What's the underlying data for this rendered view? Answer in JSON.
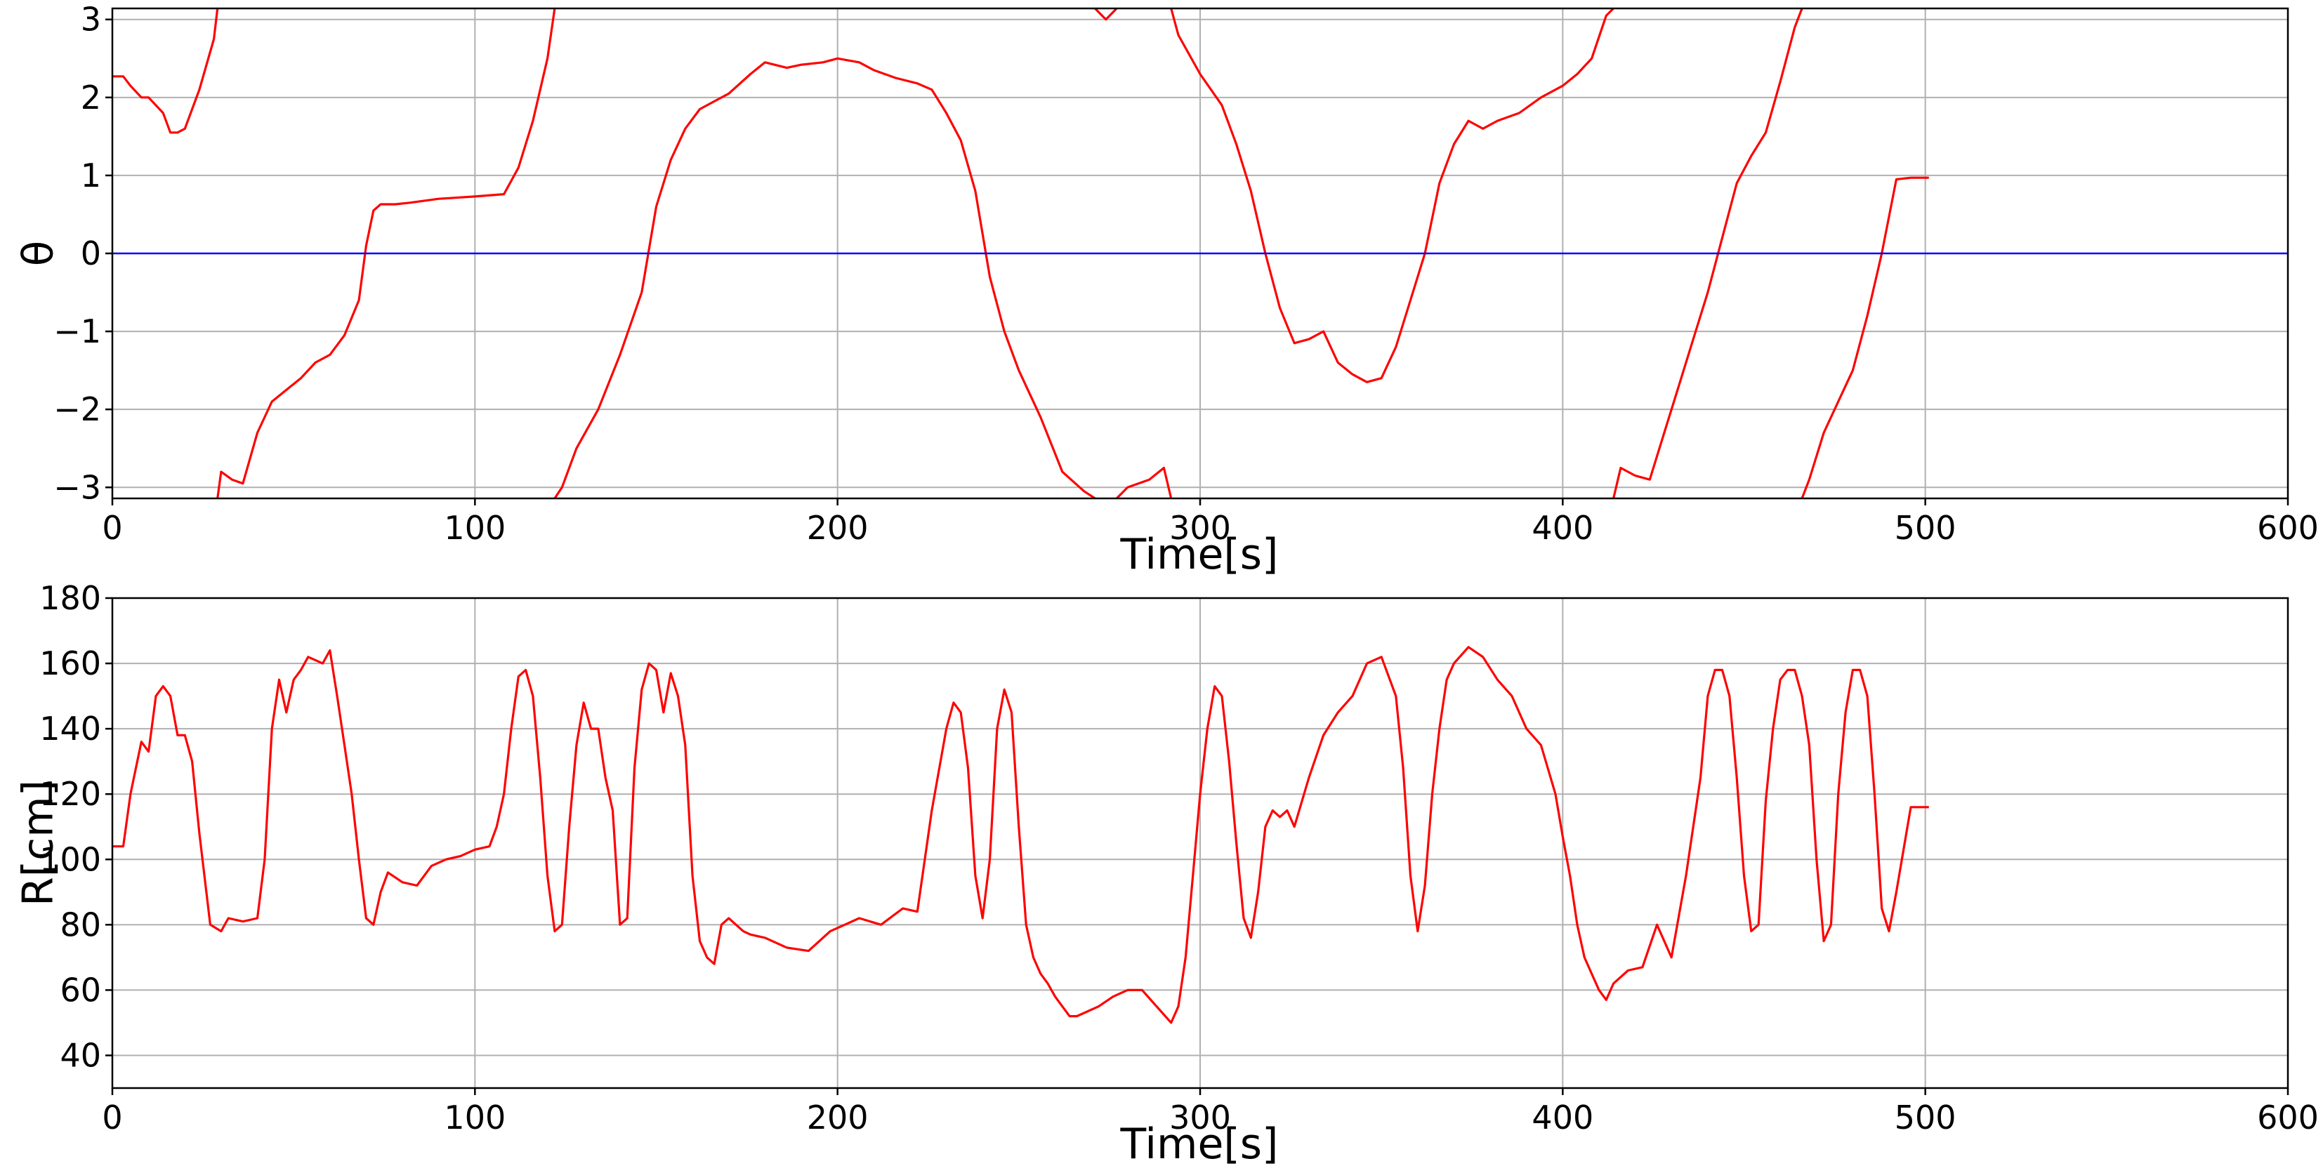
{
  "chart_data": [
    {
      "type": "line",
      "xlabel": "Time[s]",
      "ylabel": "θ",
      "xlim": [
        0,
        600
      ],
      "ylim": [
        -3.14159,
        3.14159
      ],
      "xticks": [
        0,
        100,
        200,
        300,
        400,
        500,
        600
      ],
      "yticks": [
        -3,
        -2,
        -1,
        0,
        1,
        2,
        3
      ],
      "ytick_labels": [
        "−3",
        "−2",
        "−1",
        "0",
        "1",
        "2",
        "3"
      ],
      "grid": true,
      "series": [
        {
          "color": "#ff0000",
          "wrap": true,
          "x": [
            0,
            3,
            5,
            8,
            10,
            14,
            16,
            18,
            20,
            24,
            28,
            30,
            33,
            36,
            40,
            44,
            48,
            52,
            56,
            60,
            64,
            68,
            70,
            72,
            74,
            78,
            82,
            90,
            100,
            108,
            112,
            116,
            120,
            124,
            128,
            134,
            140,
            146,
            150,
            154,
            158,
            162,
            166,
            170,
            176,
            180,
            186,
            190,
            196,
            200,
            206,
            210,
            216,
            222,
            226,
            230,
            234,
            238,
            242,
            246,
            250,
            256,
            262,
            268,
            274,
            280,
            286,
            290,
            294,
            300,
            306,
            310,
            314,
            318,
            322,
            326,
            330,
            334,
            338,
            342,
            346,
            350,
            354,
            358,
            362,
            366,
            370,
            374,
            378,
            382,
            388,
            394,
            400,
            404,
            408,
            412,
            416,
            420,
            424,
            428,
            432,
            436,
            440,
            444,
            448,
            452,
            456,
            460,
            464,
            468,
            472,
            476,
            480,
            484,
            488,
            492,
            496,
            501
          ],
          "y": [
            2.27,
            2.27,
            2.15,
            2.0,
            2.0,
            1.8,
            1.55,
            1.55,
            1.6,
            2.1,
            2.75,
            -2.8,
            -2.9,
            -2.95,
            -2.3,
            -1.9,
            -1.75,
            -1.6,
            -1.4,
            -1.3,
            -1.05,
            -0.6,
            0.1,
            0.55,
            0.63,
            0.63,
            0.65,
            0.7,
            0.73,
            0.76,
            1.1,
            1.7,
            2.5,
            -3.0,
            -2.5,
            -2.0,
            -1.3,
            -0.5,
            0.6,
            1.2,
            1.6,
            1.85,
            1.95,
            2.05,
            2.3,
            2.45,
            2.38,
            2.42,
            2.45,
            2.5,
            2.45,
            2.35,
            2.25,
            2.18,
            2.1,
            1.8,
            1.45,
            0.8,
            -0.3,
            -1.0,
            -1.5,
            -2.1,
            -2.8,
            -3.05,
            3.0,
            -3.0,
            -2.9,
            -2.75,
            2.8,
            2.3,
            1.9,
            1.4,
            0.8,
            0.0,
            -0.7,
            -1.15,
            -1.1,
            -1.0,
            -1.4,
            -1.55,
            -1.65,
            -1.6,
            -1.2,
            -0.6,
            0.0,
            0.9,
            1.4,
            1.7,
            1.6,
            1.7,
            1.8,
            2.0,
            2.15,
            2.3,
            2.5,
            3.05,
            -2.75,
            -2.85,
            -2.9,
            -2.3,
            -1.7,
            -1.1,
            -0.5,
            0.2,
            0.9,
            1.25,
            1.55,
            2.2,
            2.9,
            -2.9,
            -2.3,
            -1.9,
            -1.5,
            -0.8,
            0.0,
            0.95,
            0.97,
            0.97
          ]
        },
        {
          "color": "#0000ff",
          "x": [
            0,
            600
          ],
          "y": [
            0,
            0
          ]
        }
      ]
    },
    {
      "type": "line",
      "xlabel": "Time[s]",
      "ylabel": "R[cm]",
      "xlim": [
        0,
        600
      ],
      "ylim": [
        30,
        180
      ],
      "xticks": [
        0,
        100,
        200,
        300,
        400,
        500,
        600
      ],
      "yticks": [
        40,
        60,
        80,
        100,
        120,
        140,
        160,
        180
      ],
      "ytick_labels": [
        "40",
        "60",
        "80",
        "100",
        "120",
        "140",
        "160",
        "180"
      ],
      "grid": true,
      "series": [
        {
          "color": "#ff0000",
          "x": [
            0,
            3,
            5,
            8,
            10,
            12,
            14,
            16,
            18,
            20,
            22,
            24,
            27,
            30,
            32,
            36,
            40,
            42,
            44,
            46,
            48,
            50,
            52,
            54,
            58,
            60,
            62,
            64,
            66,
            68,
            70,
            72,
            74,
            76,
            80,
            84,
            88,
            92,
            96,
            100,
            104,
            106,
            108,
            110,
            112,
            114,
            116,
            118,
            120,
            122,
            124,
            126,
            128,
            130,
            132,
            134,
            136,
            138,
            140,
            142,
            144,
            146,
            148,
            150,
            152,
            154,
            156,
            158,
            160,
            162,
            164,
            166,
            168,
            170,
            172,
            174,
            176,
            180,
            186,
            192,
            198,
            202,
            206,
            212,
            218,
            222,
            226,
            230,
            232,
            234,
            236,
            238,
            240,
            242,
            244,
            246,
            248,
            250,
            252,
            254,
            256,
            258,
            260,
            262,
            264,
            266,
            268,
            272,
            276,
            280,
            284,
            288,
            292,
            294,
            296,
            298,
            300,
            302,
            304,
            306,
            308,
            310,
            312,
            314,
            316,
            318,
            320,
            322,
            324,
            326,
            330,
            334,
            338,
            342,
            346,
            350,
            354,
            356,
            358,
            360,
            362,
            364,
            366,
            368,
            370,
            374,
            378,
            382,
            386,
            390,
            394,
            398,
            400,
            402,
            404,
            406,
            408,
            410,
            412,
            414,
            418,
            422,
            426,
            430,
            434,
            438,
            440,
            442,
            444,
            446,
            448,
            450,
            452,
            454,
            456,
            458,
            460,
            462,
            464,
            466,
            468,
            470,
            472,
            474,
            476,
            478,
            480,
            482,
            484,
            486,
            488,
            490,
            492,
            496,
            501
          ],
          "y": [
            104,
            104,
            120,
            136,
            133,
            150,
            153,
            150,
            138,
            138,
            130,
            108,
            80,
            78,
            82,
            81,
            82,
            100,
            140,
            155,
            145,
            155,
            158,
            162,
            160,
            164,
            150,
            135,
            120,
            100,
            82,
            80,
            90,
            96,
            93,
            92,
            98,
            100,
            101,
            103,
            104,
            110,
            120,
            140,
            156,
            158,
            150,
            125,
            95,
            78,
            80,
            110,
            135,
            148,
            140,
            140,
            125,
            115,
            80,
            82,
            128,
            152,
            160,
            158,
            145,
            157,
            150,
            135,
            95,
            75,
            70,
            68,
            80,
            82,
            80,
            78,
            77,
            76,
            73,
            72,
            78,
            80,
            82,
            80,
            85,
            84,
            115,
            140,
            148,
            145,
            128,
            95,
            82,
            100,
            140,
            152,
            145,
            110,
            80,
            70,
            65,
            62,
            58,
            55,
            52,
            52,
            53,
            55,
            58,
            60,
            60,
            55,
            50,
            55,
            70,
            95,
            120,
            140,
            153,
            150,
            130,
            105,
            82,
            76,
            90,
            110,
            115,
            113,
            115,
            110,
            125,
            138,
            145,
            150,
            160,
            162,
            150,
            128,
            95,
            78,
            92,
            120,
            140,
            155,
            160,
            165,
            162,
            155,
            150,
            140,
            135,
            120,
            107,
            95,
            80,
            70,
            65,
            60,
            57,
            62,
            66,
            67,
            80,
            70,
            95,
            125,
            150,
            158,
            158,
            150,
            125,
            95,
            78,
            80,
            118,
            140,
            155,
            158,
            158,
            150,
            135,
            100,
            75,
            80,
            120,
            145,
            158,
            158,
            150,
            120,
            85,
            78,
            90,
            116,
            116
          ]
        }
      ]
    }
  ]
}
